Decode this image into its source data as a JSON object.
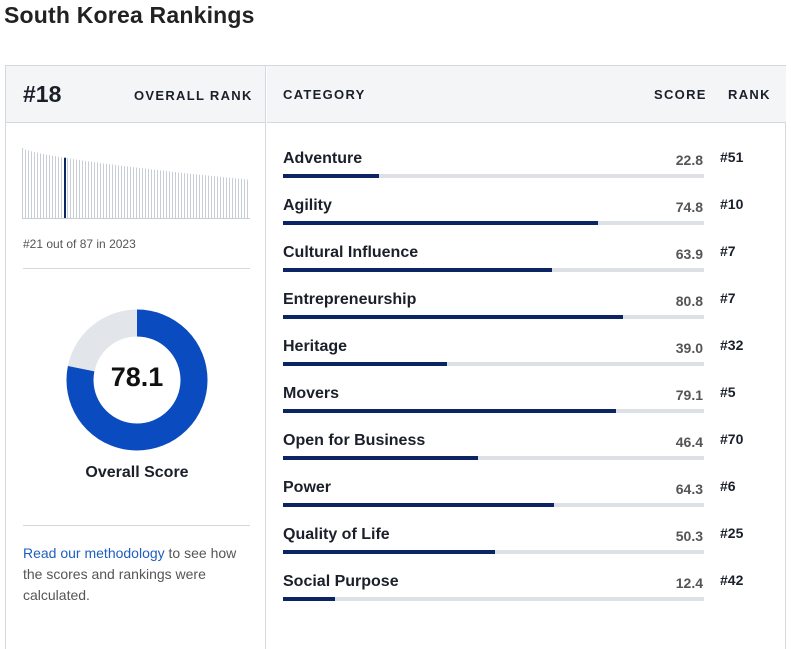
{
  "page": {
    "title": "South Korea Rankings"
  },
  "overall": {
    "rank": "#18",
    "rank_label": "OVERALL RANK",
    "history_note": "#21 out of 87 in 2023",
    "score": 78.1,
    "score_text": "78.1",
    "score_label": "Overall Score",
    "methodology_link": "Read our methodology",
    "methodology_text": " to see how the scores and rankings were calculated."
  },
  "table": {
    "headers": {
      "category": "CATEGORY",
      "score": "SCORE",
      "rank": "RANK"
    },
    "rows": [
      {
        "category": "Adventure",
        "score": "22.8",
        "rank": "#51",
        "value": 22.8
      },
      {
        "category": "Agility",
        "score": "74.8",
        "rank": "#10",
        "value": 74.8
      },
      {
        "category": "Cultural Influence",
        "score": "63.9",
        "rank": "#7",
        "value": 63.9
      },
      {
        "category": "Entrepreneurship",
        "score": "80.8",
        "rank": "#7",
        "value": 80.8
      },
      {
        "category": "Heritage",
        "score": "39.0",
        "rank": "#32",
        "value": 39.0
      },
      {
        "category": "Movers",
        "score": "79.1",
        "rank": "#5",
        "value": 79.1
      },
      {
        "category": "Open for Business",
        "score": "46.4",
        "rank": "#70",
        "value": 46.4
      },
      {
        "category": "Power",
        "score": "64.3",
        "rank": "#6",
        "value": 64.3
      },
      {
        "category": "Quality of Life",
        "score": "50.3",
        "rank": "#25",
        "value": 50.3
      },
      {
        "category": "Social Purpose",
        "score": "12.4",
        "rank": "#42",
        "value": 12.4
      }
    ]
  },
  "colors": {
    "accent": "#0b2463",
    "donut_fill": "#0a4bbf",
    "donut_track": "#e2e5ea",
    "spark_bar": "#c9ced6",
    "spark_highlight": "#0b2463",
    "link": "#1f5fbf"
  }
}
